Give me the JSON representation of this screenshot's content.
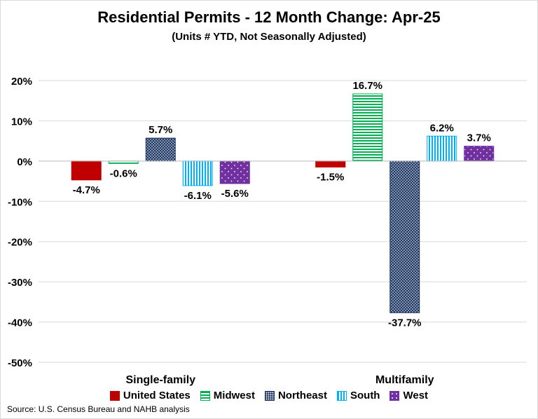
{
  "chart_data": {
    "type": "bar",
    "title": "Residential Permits - 12 Month Change:  Apr-25",
    "subtitle": "(Units # YTD, Not Seasonally Adjusted)",
    "categories": [
      "Single-family",
      "Multifamily"
    ],
    "series": [
      {
        "name": "United States",
        "values": [
          -4.7,
          -1.5
        ],
        "labels": [
          "-4.7%",
          "-1.5%"
        ],
        "color": "#c00000",
        "pattern": "solid"
      },
      {
        "name": "Midwest",
        "values": [
          -0.6,
          16.7
        ],
        "labels": [
          "-0.6%",
          "16.7%"
        ],
        "color": "#00b050",
        "pattern": "horizontal-stripes"
      },
      {
        "name": "Northeast",
        "values": [
          5.7,
          -37.7
        ],
        "labels": [
          "5.7%",
          "-37.7%"
        ],
        "color": "#1f3864",
        "pattern": "dots"
      },
      {
        "name": "South",
        "values": [
          -6.1,
          6.2
        ],
        "labels": [
          "-6.1%",
          "6.2%"
        ],
        "color": "#00b0f0",
        "pattern": "vertical-stripes"
      },
      {
        "name": "West",
        "values": [
          -5.6,
          3.7
        ],
        "labels": [
          "-5.6%",
          "3.7%"
        ],
        "color": "#7030a0",
        "pattern": "sparse-dots"
      }
    ],
    "ylim": [
      -50,
      20
    ],
    "yticks": [
      20,
      10,
      0,
      -10,
      -20,
      -30,
      -40,
      -50
    ],
    "ytick_labels": [
      "20%",
      "10%",
      "0%",
      "-10%",
      "-20%",
      "-30%",
      "-40%",
      "-50%"
    ],
    "grid": true,
    "legend_position": "bottom",
    "source": "Source: U.S. Census Bureau and NAHB analysis"
  }
}
